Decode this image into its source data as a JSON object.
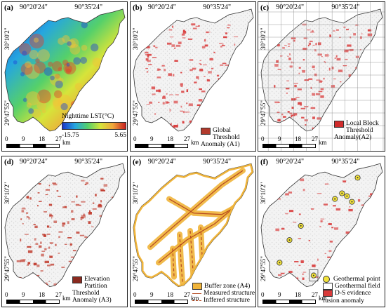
{
  "coords": {
    "lon_left": "90°20'24\"",
    "lon_right": "90°35'24\"",
    "lat_top": "30°10'2\"",
    "lat_bottom": "29°47'55\""
  },
  "scale": {
    "ticks": [
      "0",
      "9",
      "18",
      "27"
    ],
    "unit": "km"
  },
  "panels": [
    {
      "label": "(a)",
      "legend": {
        "title": "Nighttime LST(°C)",
        "min": "-15.75",
        "max": "5.65"
      }
    },
    {
      "label": "(b)",
      "legend": {
        "text": "Global Threshold Anomaly  (A1)",
        "color": "#b23a2c"
      }
    },
    {
      "label": "(c)",
      "legend": {
        "text": "Local Block Threshold Anomaly(A2)",
        "color": "#d12b2b"
      }
    },
    {
      "label": "(d)",
      "legend": {
        "text": "Elevation Partition Threshold Anomaly (A3)",
        "color": "#8a2a1f"
      }
    },
    {
      "label": "(e)",
      "legend": {
        "buffer": "Buffer zone (A4)",
        "measured": "Measured structure",
        "inferred": "Inffered structure"
      }
    },
    {
      "label": "(f)",
      "legend": {
        "point": "Geothermal point",
        "field": "Geothermal field",
        "fusion": "D-S evidence fusion anomaly"
      }
    }
  ]
}
